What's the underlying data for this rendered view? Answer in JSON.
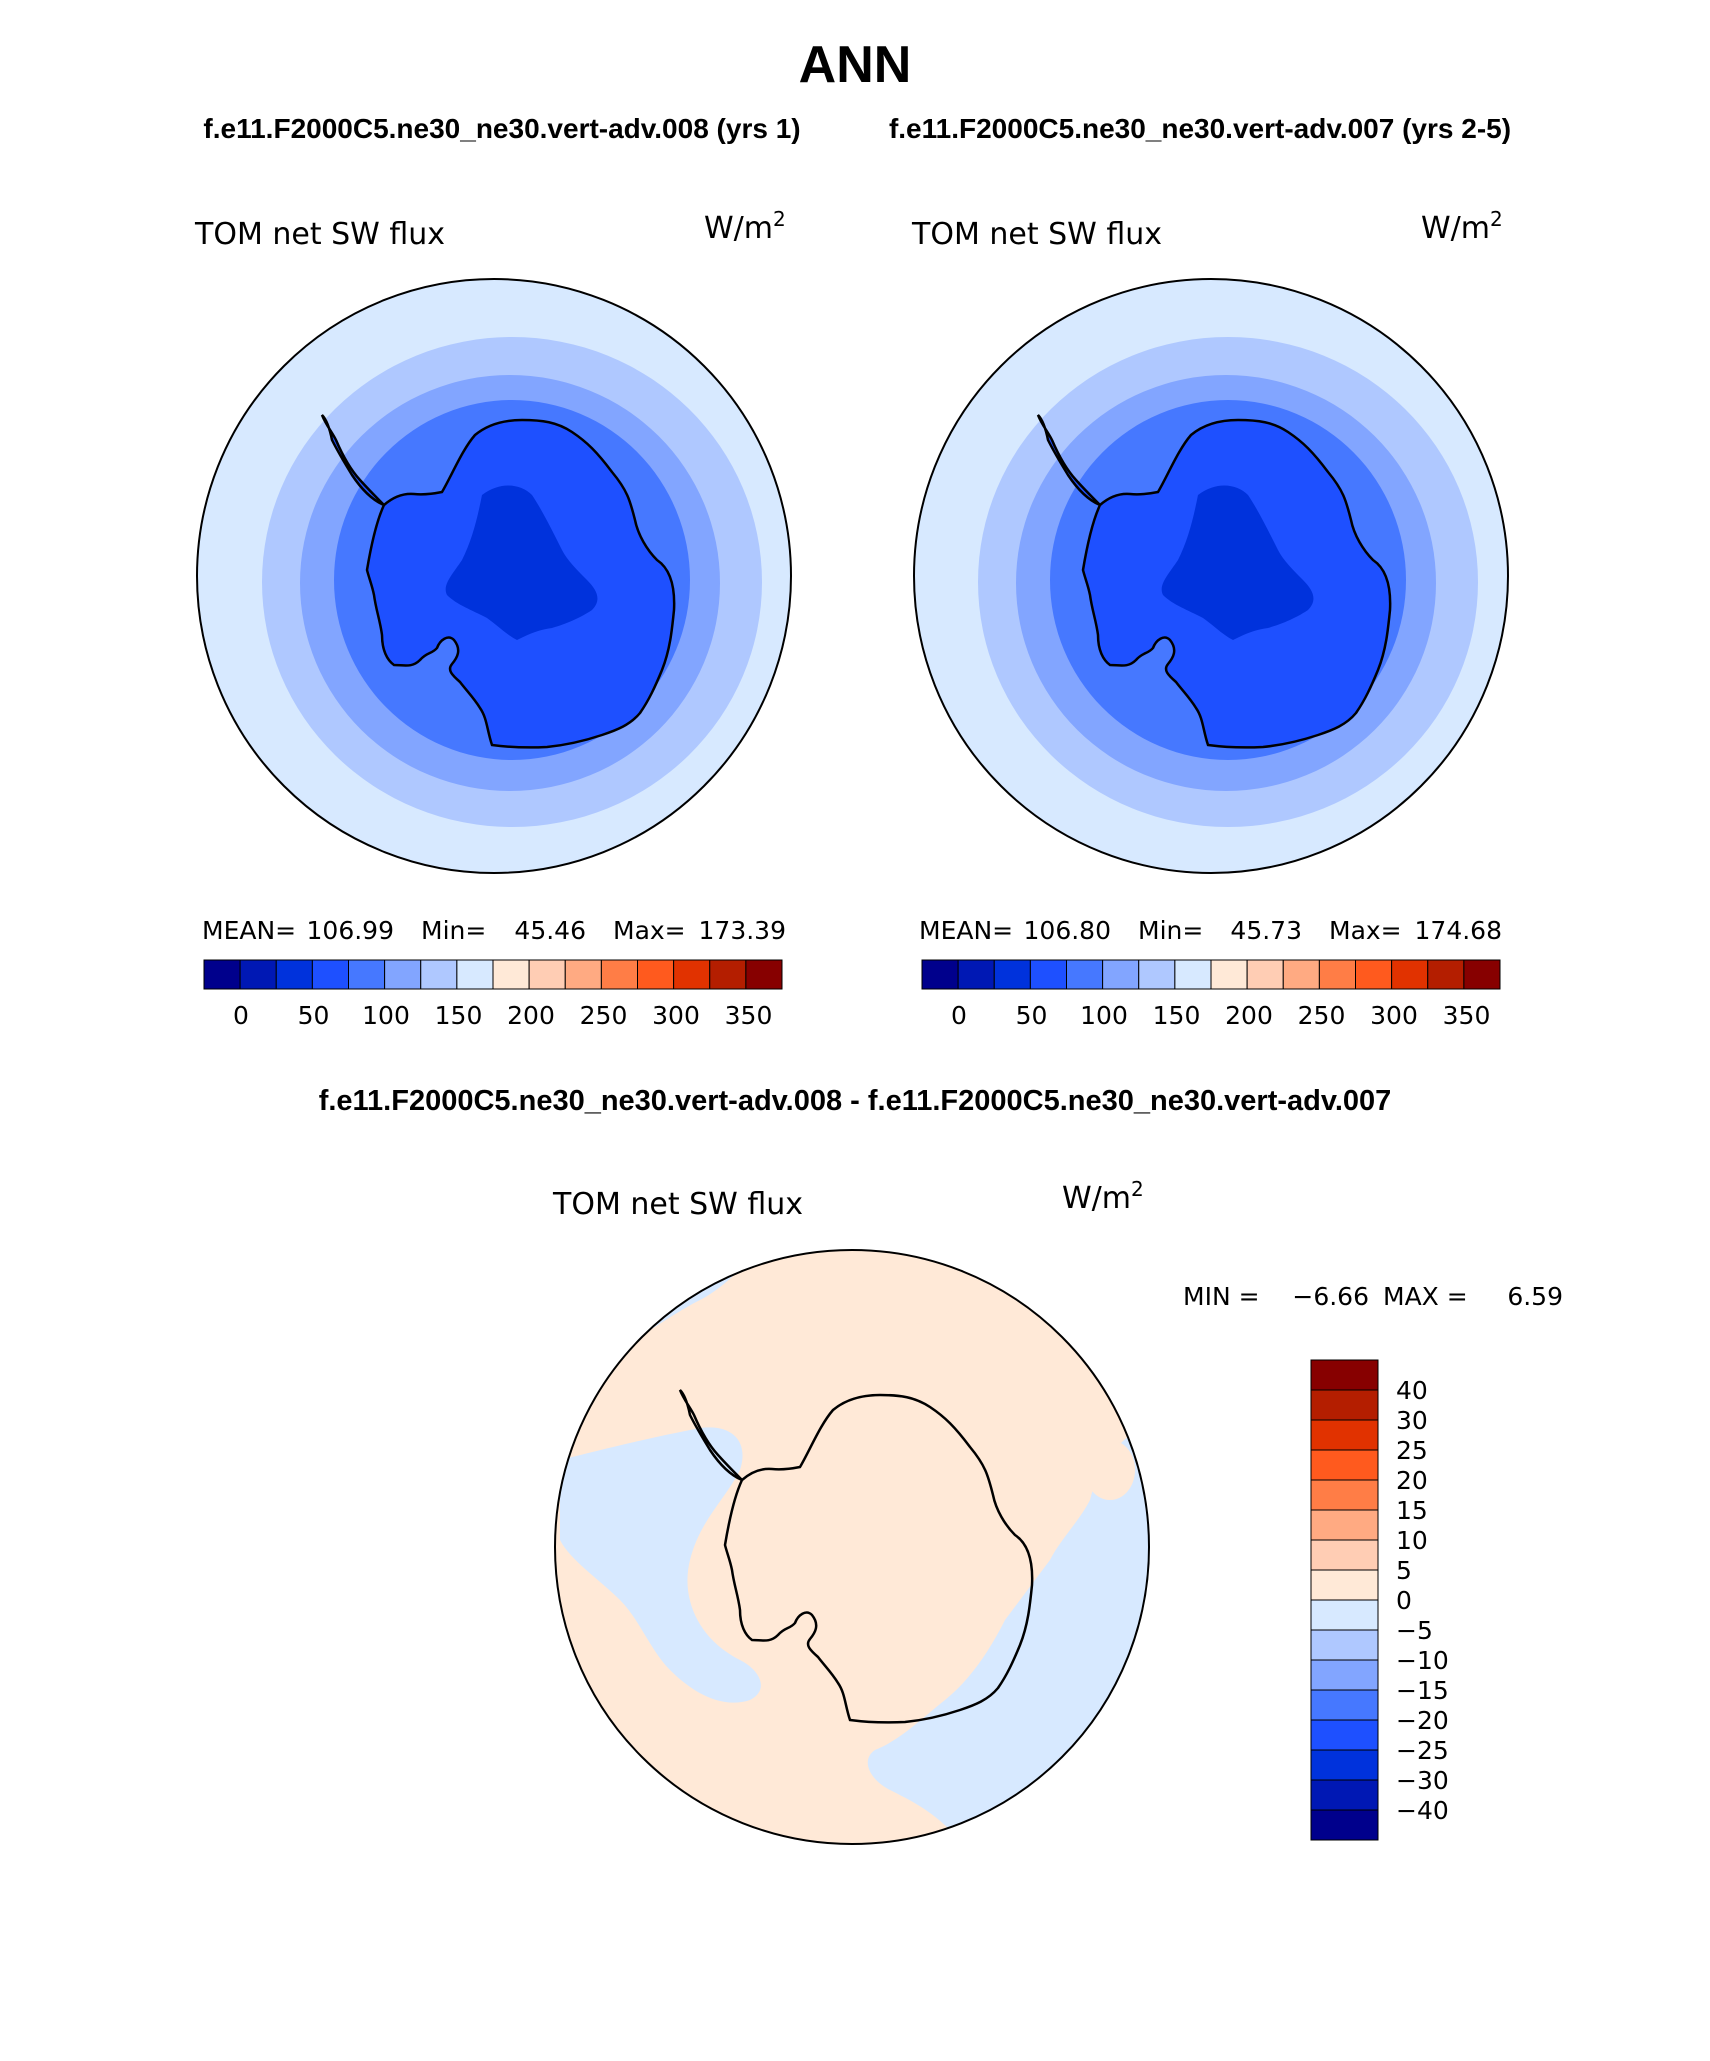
{
  "title": "ANN",
  "subtitle_left": "f.e11.F2000C5.ne30_ne30.vert-adv.008 (yrs 1)",
  "subtitle_right": "f.e11.F2000C5.ne30_ne30.vert-adv.007 (yrs 2-5)",
  "diff_title": "f.e11.F2000C5.ne30_ne30.vert-adv.008 - f.e11.F2000C5.ne30_ne30.vert-adv.007",
  "variable": "TOM net SW flux",
  "units_base": "W/m",
  "units_exp": "2",
  "panels": [
    {
      "mean_label": "MEAN=",
      "mean": "106.99",
      "min_label": "Min=",
      "min": "45.46",
      "max_label": "Max=",
      "max": "173.39"
    },
    {
      "mean_label": "MEAN=",
      "mean": "106.80",
      "min_label": "Min=",
      "min": "45.73",
      "max_label": "Max=",
      "max": "174.68"
    }
  ],
  "diff": {
    "min_label": "MIN =",
    "min": "−6.66",
    "max_label": "MAX =",
    "max": "6.59"
  },
  "abs_colorbar": {
    "colors": [
      "#00008c",
      "#0018b4",
      "#0032dc",
      "#1e50ff",
      "#4678ff",
      "#82a5ff",
      "#afc8ff",
      "#d7e9ff",
      "#ffe9d7",
      "#ffcdb4",
      "#ffaa82",
      "#ff7d46",
      "#ff5a1e",
      "#e13200",
      "#b41e00",
      "#870000"
    ],
    "labels": [
      "0",
      "50",
      "100",
      "150",
      "200",
      "250",
      "300",
      "350"
    ]
  },
  "diff_colorbar": {
    "colors": [
      "#870000",
      "#b41e00",
      "#e13200",
      "#ff5a1e",
      "#ff7d46",
      "#ffaa82",
      "#ffcdb4",
      "#ffe9d7",
      "#d7e9ff",
      "#afc8ff",
      "#82a5ff",
      "#4678ff",
      "#1e50ff",
      "#0032dc",
      "#0018b4",
      "#00008c"
    ],
    "labels": [
      "40",
      "30",
      "25",
      "20",
      "15",
      "10",
      "5",
      "0",
      "−5",
      "−10",
      "−15",
      "−20",
      "−25",
      "−30",
      "−40"
    ]
  },
  "map_colors": {
    "ring1": "#d7e9ff",
    "ring2": "#afc8ff",
    "ring3": "#82a5ff",
    "ring4": "#4678ff",
    "land": "#1e50ff",
    "plateau": "#0032dc",
    "diff_pos": "#ffe9d7",
    "diff_neg": "#d7e9ff"
  }
}
